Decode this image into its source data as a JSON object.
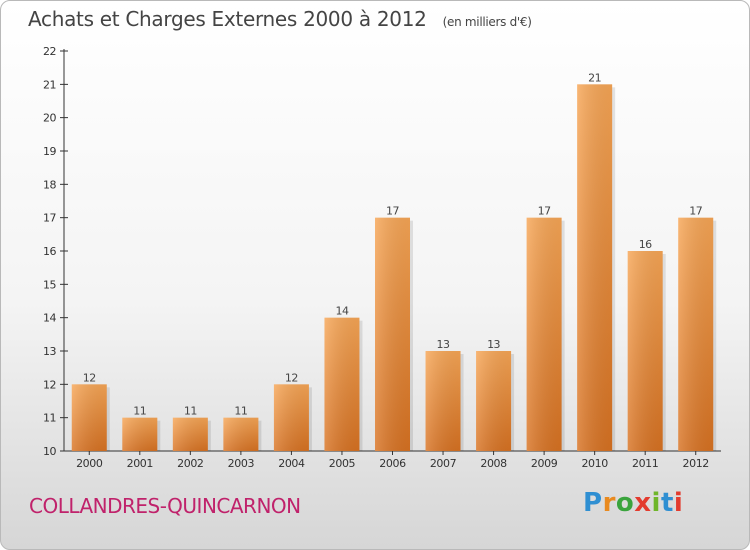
{
  "header": {
    "title": "Achats et Charges Externes 2000 à 2012",
    "subtitle": "(en milliers d'€)"
  },
  "footer": {
    "place_name": "COLLANDRES-QUINCARNON",
    "logo_text": "Proxiti"
  },
  "colors": {
    "bar_top": "#f7a656",
    "bar_bottom": "#d87222",
    "place": "#c0226b",
    "logo_letters": [
      "#2f8fd2",
      "#e98a1f",
      "#3aa43d",
      "#e33b2e",
      "#6fb62a",
      "#2f8fd2",
      "#e33b2e"
    ]
  },
  "chart_data": {
    "type": "bar",
    "categories": [
      "2000",
      "2001",
      "2002",
      "2003",
      "2004",
      "2005",
      "2006",
      "2007",
      "2008",
      "2009",
      "2010",
      "2011",
      "2012"
    ],
    "values": [
      12,
      11,
      11,
      11,
      12,
      14,
      17,
      13,
      13,
      17,
      21,
      16,
      17
    ],
    "title": "Achats et Charges Externes 2000 à 2012",
    "subtitle": "(en milliers d'€)",
    "ylim": [
      10,
      22
    ],
    "yticks": [
      10,
      11,
      12,
      13,
      14,
      15,
      16,
      17,
      18,
      19,
      20,
      21,
      22
    ],
    "grid": false,
    "data_labels": true
  }
}
